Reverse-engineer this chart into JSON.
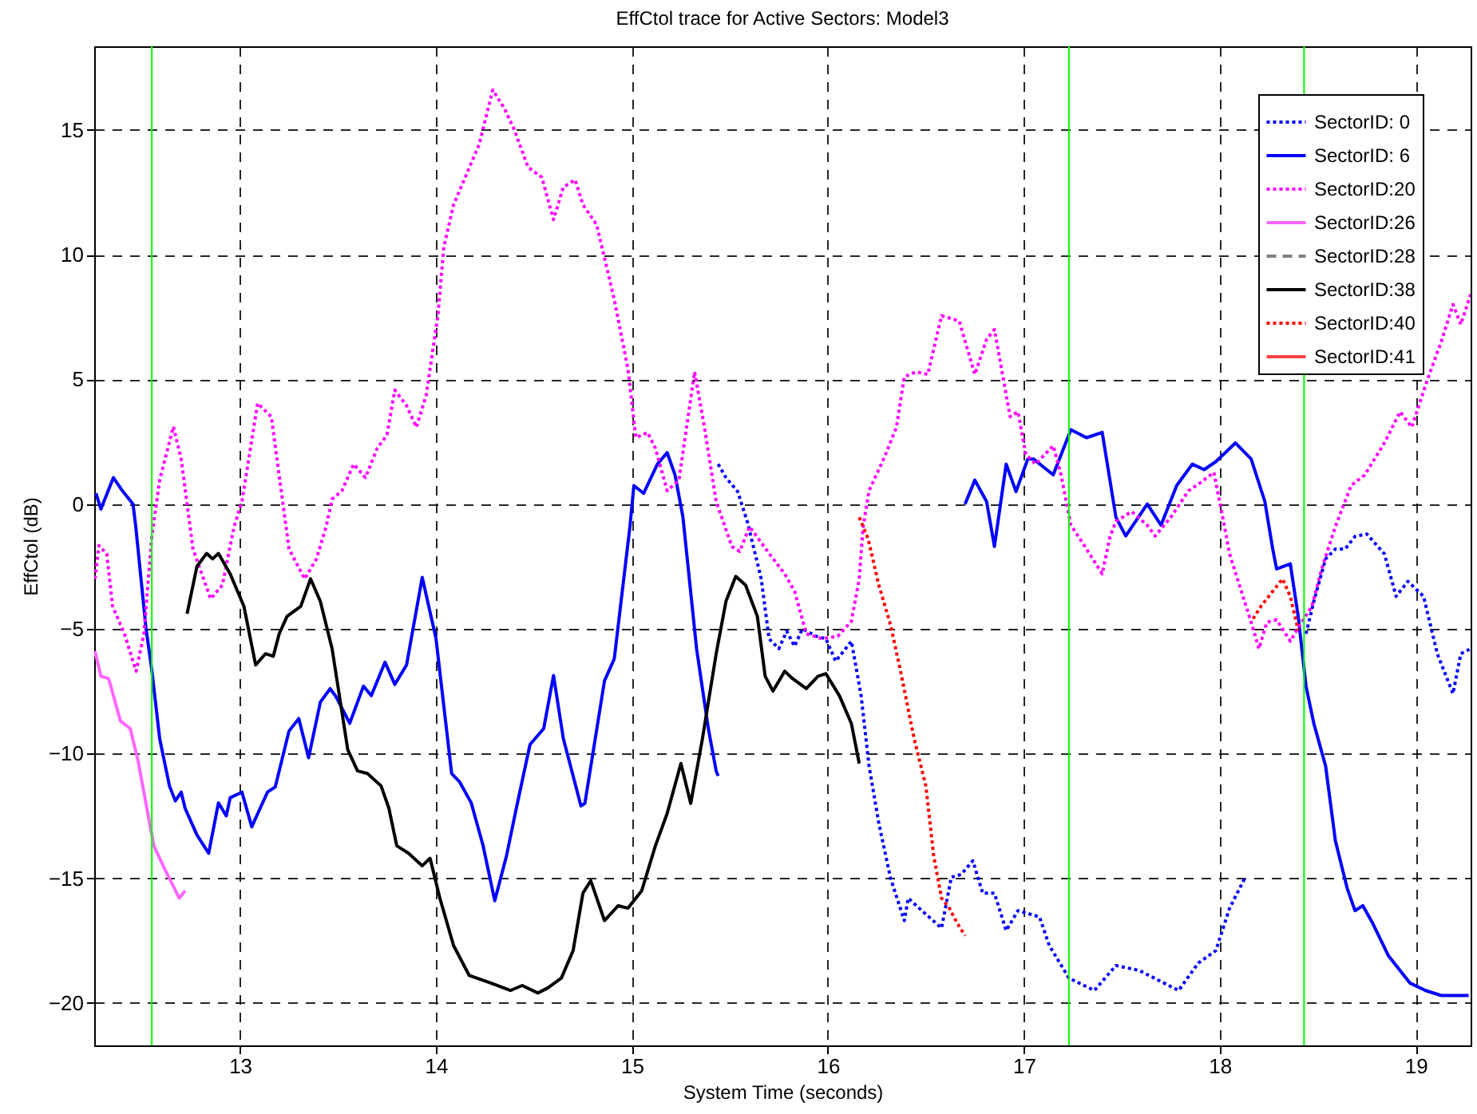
{
  "chart_data": {
    "type": "line",
    "title": "EffCtol trace for Active Sectors: Model3",
    "xlabel": "System Time (seconds)",
    "ylabel": "EffCtol (dB)",
    "xlim": [
      12.256,
      19.28
    ],
    "xticks": [
      13,
      14,
      15,
      16,
      17,
      18,
      19
    ],
    "ylim": [
      -21.7,
      18.35
    ],
    "yticks": [
      -20,
      -15,
      -10,
      -5,
      0,
      5,
      10,
      15
    ],
    "grid": true,
    "legend": "top right",
    "ref_lines": [
      {
        "axis": "x",
        "value": 12.55,
        "color": "#00ff00"
      },
      {
        "axis": "x",
        "value": 17.23,
        "color": "#00ff00"
      },
      {
        "axis": "x",
        "value": 18.43,
        "color": "#00ff00"
      }
    ],
    "series": [
      {
        "name": "SectorID: 0",
        "color": "#0000ff",
        "line_style": "dotted",
        "x": [
          15.44,
          15.48,
          15.54,
          15.59,
          15.66,
          15.7,
          15.75,
          15.79,
          15.83,
          15.87,
          15.94,
          15.99,
          16.04,
          16.12,
          16.17,
          16.21,
          16.26,
          16.32,
          16.39,
          16.41,
          16.48,
          16.58,
          16.63,
          16.68,
          16.74,
          16.79,
          16.85,
          16.91,
          16.97,
          17.08,
          17.13,
          17.23,
          17.36,
          17.47,
          17.59,
          17.69,
          17.79,
          17.89,
          17.98,
          18.05,
          18.13,
          18.3,
          18.44,
          18.48,
          18.54,
          18.59,
          18.64,
          18.69,
          18.75,
          18.84,
          18.9,
          18.96,
          19.04,
          19.11,
          19.19,
          19.23,
          19.28
        ],
        "values": [
          1.6,
          1.06,
          0.5,
          -0.74,
          -3.0,
          -5.4,
          -5.8,
          -5.1,
          -5.7,
          -5.0,
          -5.3,
          -5.4,
          -6.3,
          -5.5,
          -7.7,
          -10.5,
          -12.8,
          -15.0,
          -16.7,
          -15.8,
          -16.3,
          -17.0,
          -14.96,
          -14.85,
          -14.3,
          -15.6,
          -15.6,
          -17.1,
          -16.3,
          -16.55,
          -17.7,
          -19.0,
          -19.5,
          -18.5,
          -18.7,
          -19.1,
          -19.5,
          -18.4,
          -17.9,
          -16.2,
          -14.96,
          null,
          -5.2,
          -3.9,
          -2.2,
          -1.8,
          -1.8,
          -1.3,
          -1.2,
          -2.0,
          -3.7,
          -3.1,
          -3.7,
          -6.0,
          -7.6,
          -6.0,
          -5.8
        ]
      },
      {
        "name": "SectorID: 6",
        "color": "#0000ff",
        "line_style": "solid",
        "x": [
          12.265,
          12.29,
          12.354,
          12.4,
          12.454,
          12.468,
          12.52,
          12.55,
          12.59,
          12.64,
          12.67,
          12.7,
          12.72,
          12.78,
          12.84,
          12.89,
          12.93,
          12.95,
          13.01,
          13.06,
          13.14,
          13.18,
          13.25,
          13.3,
          13.35,
          13.41,
          13.46,
          13.49,
          13.56,
          13.63,
          13.67,
          13.74,
          13.79,
          13.85,
          13.93,
          14.0,
          14.08,
          14.12,
          14.18,
          14.24,
          14.3,
          14.36,
          14.41,
          14.48,
          14.55,
          14.6,
          14.65,
          14.74,
          14.76,
          14.86,
          14.91,
          14.99,
          15.01,
          15.06,
          15.13,
          15.18,
          15.22,
          15.26,
          15.33,
          15.39,
          15.43,
          15.44,
          16.2,
          16.7,
          16.75,
          16.81,
          16.85,
          16.91,
          16.96,
          17.02,
          17.05,
          17.15,
          17.24,
          17.32,
          17.4,
          17.47,
          17.52,
          17.63,
          17.7,
          17.78,
          17.86,
          17.92,
          17.98,
          18.08,
          18.16,
          18.23,
          18.27,
          18.29,
          18.36,
          18.4,
          18.44,
          18.48,
          18.54,
          18.59,
          18.65,
          18.69,
          18.73,
          18.78,
          18.86,
          18.97,
          19.05,
          19.13,
          19.27
        ],
        "values": [
          0.43,
          -0.2,
          1.06,
          0.53,
          0.0,
          -0.9,
          -4.96,
          -6.66,
          -9.4,
          -11.3,
          -11.9,
          -11.55,
          -12.2,
          -13.26,
          -14.0,
          -11.98,
          -12.5,
          -11.77,
          -11.55,
          -12.94,
          -11.55,
          -11.34,
          -9.1,
          -8.6,
          -10.17,
          -7.94,
          -7.4,
          -7.72,
          -8.79,
          -7.3,
          -7.68,
          -6.34,
          -7.23,
          -6.45,
          -2.94,
          -5.38,
          -10.8,
          -11.13,
          -11.98,
          -13.68,
          -15.9,
          -14.1,
          -12.2,
          -9.64,
          -9.0,
          -6.87,
          -9.4,
          -12.1,
          -12.0,
          -7.09,
          -6.2,
          -0.9,
          0.74,
          0.43,
          1.6,
          2.06,
          1.17,
          -0.5,
          -5.8,
          -9.0,
          -10.7,
          -10.9,
          null,
          0.0,
          0.96,
          0.1,
          -1.7,
          1.6,
          0.5,
          1.8,
          1.8,
          1.17,
          2.98,
          2.66,
          2.87,
          -0.53,
          -1.28,
          0.0,
          -0.85,
          0.74,
          1.6,
          1.38,
          1.7,
          2.45,
          1.81,
          0.1,
          -1.8,
          -2.6,
          -2.4,
          -4.5,
          -7.3,
          -8.8,
          -10.5,
          -13.5,
          -15.4,
          -16.3,
          -16.1,
          -16.8,
          -18.1,
          -19.2,
          -19.5,
          -19.7,
          -19.7
        ]
      },
      {
        "name": "SectorID:20",
        "color": "#ff00ff",
        "line_style": "dotted",
        "x": [
          12.26,
          12.28,
          12.32,
          12.35,
          12.41,
          12.47,
          12.51,
          12.55,
          12.59,
          12.66,
          12.7,
          12.76,
          12.85,
          12.91,
          12.97,
          13.01,
          13.09,
          13.16,
          13.25,
          13.33,
          13.39,
          13.44,
          13.47,
          13.52,
          13.58,
          13.64,
          13.7,
          13.75,
          13.79,
          13.85,
          13.9,
          13.95,
          14.01,
          14.04,
          14.09,
          14.16,
          14.22,
          14.29,
          14.35,
          14.4,
          14.47,
          14.54,
          14.6,
          14.65,
          14.71,
          14.75,
          14.82,
          14.91,
          14.98,
          15.02,
          15.08,
          15.12,
          15.18,
          15.24,
          15.32,
          15.37,
          15.43,
          15.51,
          15.55,
          15.6,
          15.7,
          15.78,
          15.83,
          15.89,
          15.97,
          16.05,
          16.12,
          16.16,
          16.18,
          16.21,
          16.29,
          16.35,
          16.39,
          16.45,
          16.51,
          16.58,
          16.67,
          16.75,
          16.81,
          16.85,
          16.93,
          16.97,
          17.01,
          17.06,
          17.15,
          17.19,
          17.24,
          17.32,
          17.4,
          17.44,
          17.47,
          17.55,
          17.63,
          17.67,
          17.75,
          17.84,
          17.9,
          17.97,
          18.02,
          18.05,
          18.1,
          18.16,
          18.2,
          18.24,
          18.29,
          18.36,
          18.4,
          18.47,
          18.52,
          18.59,
          18.67,
          18.74,
          18.84,
          18.92,
          18.98,
          19.06,
          19.13,
          19.19,
          19.23,
          19.28
        ],
        "values": [
          -3.0,
          -1.66,
          -2.0,
          -4.1,
          -5.2,
          -6.7,
          -5.2,
          -1.3,
          0.96,
          3.1,
          1.8,
          -1.8,
          -3.8,
          -3.25,
          -0.9,
          0.1,
          4.04,
          3.5,
          -1.8,
          -3.0,
          -2.2,
          -0.9,
          0.2,
          0.53,
          1.6,
          1.06,
          2.23,
          2.77,
          4.57,
          3.94,
          3.08,
          4.36,
          7.55,
          10.3,
          12.0,
          13.3,
          14.4,
          16.6,
          15.85,
          15.0,
          13.5,
          13.1,
          11.4,
          12.7,
          13.0,
          12.0,
          11.2,
          8.2,
          5.4,
          2.66,
          2.87,
          2.23,
          0.53,
          0.96,
          5.3,
          3.08,
          0.1,
          -1.7,
          -1.9,
          -0.9,
          -1.98,
          -2.8,
          -3.5,
          -5.2,
          -5.4,
          -5.3,
          -4.7,
          -3.0,
          -0.9,
          0.53,
          1.9,
          3.08,
          5.1,
          5.3,
          5.2,
          7.55,
          7.34,
          5.2,
          6.6,
          7.0,
          3.5,
          3.7,
          2.0,
          1.6,
          2.34,
          1.17,
          -0.85,
          -1.8,
          -2.8,
          -1.3,
          -0.7,
          -0.3,
          -0.85,
          -1.28,
          -0.53,
          0.53,
          0.85,
          1.27,
          -0.74,
          -2.0,
          -3.25,
          -4.74,
          -5.8,
          -4.74,
          -4.64,
          -5.5,
          -4.96,
          -4.1,
          -2.6,
          -0.9,
          0.74,
          1.17,
          2.45,
          3.7,
          3.08,
          5.0,
          6.5,
          8.0,
          7.2,
          8.4
        ]
      },
      {
        "name": "SectorID:26",
        "color": "#ff66ff",
        "line_style": "solid",
        "x": [
          12.26,
          12.29,
          12.33,
          12.39,
          12.44,
          12.48,
          12.52,
          12.56,
          12.62,
          12.69,
          12.72
        ],
        "values": [
          -5.9,
          -6.9,
          -7.0,
          -8.7,
          -9.0,
          -10.3,
          -12.0,
          -13.7,
          -14.7,
          -15.8,
          -15.5
        ]
      },
      {
        "name": "SectorID:28",
        "color": "#808080",
        "line_style": "dashed"
      },
      {
        "name": "SectorID:38",
        "color": "#000000",
        "line_style": "solid",
        "x": [
          12.73,
          12.78,
          12.83,
          12.86,
          12.89,
          12.95,
          13.02,
          13.08,
          13.13,
          13.17,
          13.2,
          13.24,
          13.31,
          13.36,
          13.41,
          13.47,
          13.55,
          13.6,
          13.65,
          13.72,
          13.76,
          13.8,
          13.86,
          13.93,
          13.97,
          14.02,
          14.09,
          14.17,
          14.28,
          14.38,
          14.44,
          14.52,
          14.57,
          14.64,
          14.7,
          14.75,
          14.79,
          14.86,
          14.93,
          14.98,
          15.05,
          15.12,
          15.18,
          15.25,
          15.3,
          15.36,
          15.43,
          15.48,
          15.53,
          15.58,
          15.64,
          15.68,
          15.72,
          15.78,
          15.82,
          15.89,
          15.95,
          15.99,
          16.06,
          16.12,
          16.16
        ],
        "values": [
          -4.4,
          -2.5,
          -1.98,
          -2.2,
          -1.98,
          -2.8,
          -4.1,
          -6.45,
          -6.0,
          -6.1,
          -5.2,
          -4.5,
          -4.1,
          -3.0,
          -3.9,
          -5.8,
          -9.85,
          -10.7,
          -10.8,
          -11.3,
          -12.2,
          -13.7,
          -14.0,
          -14.5,
          -14.2,
          -15.8,
          -17.7,
          -18.9,
          -19.2,
          -19.5,
          -19.3,
          -19.6,
          -19.4,
          -19.0,
          -17.9,
          -15.6,
          -15.1,
          -16.7,
          -16.1,
          -16.2,
          -15.5,
          -13.7,
          -12.4,
          -10.4,
          -12.0,
          -9.4,
          -6.0,
          -3.9,
          -2.9,
          -3.25,
          -4.5,
          -6.9,
          -7.5,
          -6.7,
          -7.0,
          -7.4,
          -6.9,
          -6.8,
          -7.7,
          -8.8,
          -10.4
        ]
      },
      {
        "name": "SectorID:40",
        "color": "#ff0000",
        "line_style": "dotted",
        "x": [
          16.16,
          16.2,
          16.21,
          16.26,
          16.32,
          16.37,
          16.44,
          16.5,
          16.54,
          16.58,
          16.62,
          16.66,
          16.7,
          17.5,
          18.17,
          18.21,
          18.27,
          18.32,
          18.36,
          18.4
        ],
        "values": [
          -0.53,
          -1.28,
          -1.55,
          -3.25,
          -4.85,
          -6.66,
          -9.4,
          -11.3,
          -14.1,
          -15.8,
          -16.2,
          -16.8,
          -17.3,
          null,
          -4.6,
          -4.1,
          -3.5,
          -3.0,
          -3.7,
          -5.06
        ]
      },
      {
        "name": "SectorID:41",
        "color": "#ff4040",
        "line_style": "solid"
      }
    ]
  }
}
